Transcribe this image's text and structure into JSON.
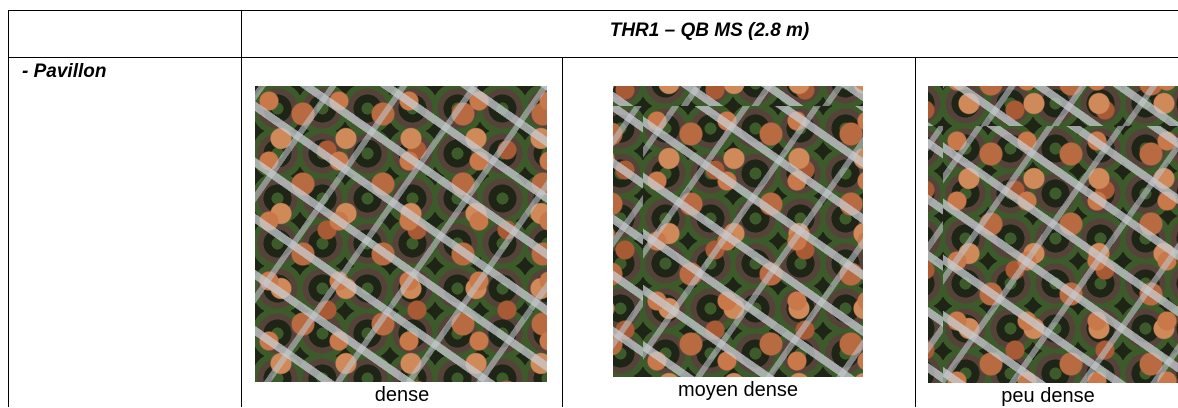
{
  "table": {
    "header": {
      "title": "THR1 – QB MS (2.8 m)"
    },
    "row_label": "- Pavillon",
    "images": [
      {
        "caption": "dense"
      },
      {
        "caption": "moyen dense"
      },
      {
        "caption": "peu dense"
      }
    ]
  }
}
